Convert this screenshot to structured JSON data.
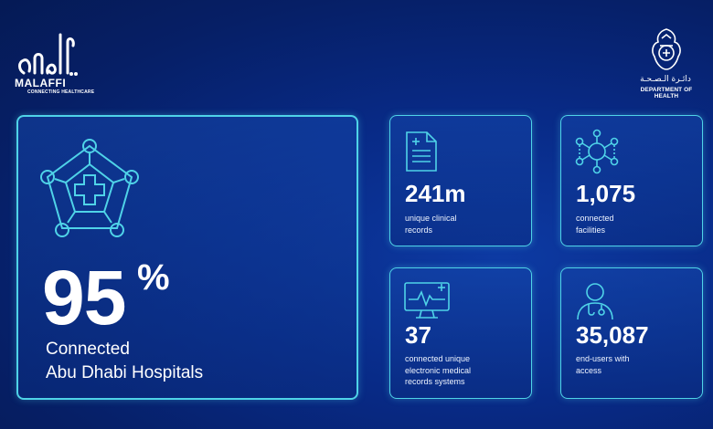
{
  "brand": {
    "logo_name": "MALAFFI",
    "logo_tagline": "CONNECTING HEALTHCARE",
    "logo_icon": "malaffi-arabic-calligraphy-logo"
  },
  "authority": {
    "arabic_name": "دائـرة الـصـحـة",
    "english_name": "DEPARTMENT OF HEALTH",
    "emblem_icon": "abu-dhabi-falcon-emblem"
  },
  "main_stat": {
    "value": "95",
    "unit": "%",
    "label_line1": "Connected",
    "label_line2": "Abu Dhabi Hospitals",
    "icon": "hospital-network-icon"
  },
  "stats": [
    {
      "value": "241m",
      "desc_line1": "unique clinical",
      "desc_line2": "records",
      "desc_line3": "",
      "icon": "document-icon"
    },
    {
      "value": "1,075",
      "desc_line1": "connected",
      "desc_line2": "facilities",
      "desc_line3": "",
      "icon": "network-nodes-icon"
    },
    {
      "value": "37",
      "desc_line1": "connected unique",
      "desc_line2": "electronic medical",
      "desc_line3": "records systems",
      "icon": "monitor-heartbeat-icon"
    },
    {
      "value": "35,087",
      "desc_line1": "end-users with",
      "desc_line2": "access",
      "desc_line3": "",
      "icon": "doctor-icon"
    }
  ],
  "colors": {
    "accent": "#4fd3e8",
    "background": "#082a86"
  }
}
